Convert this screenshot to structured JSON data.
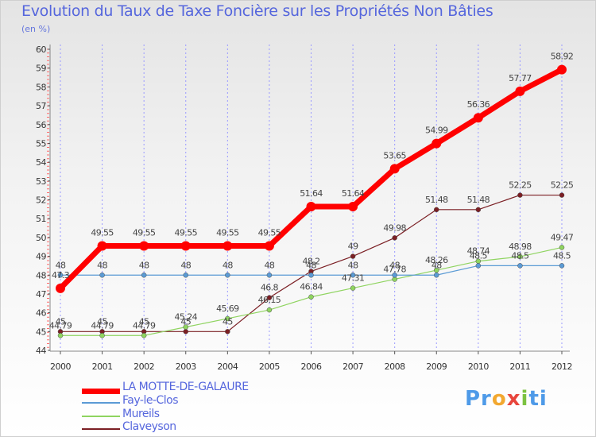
{
  "title": "Evolution du Taux de Taxe Foncière sur les Propriétés Non Bâties",
  "unit_label": "(en %)",
  "logo": {
    "p": "Pr",
    "o": "o",
    "x": "x",
    "i": "i",
    "t": "ti",
    "full": "Proxiti"
  },
  "chart_data": {
    "type": "line",
    "title": "Evolution du Taux de Taxe Foncière sur les Propriétés Non Bâties",
    "ylabel": "(en %)",
    "xlabel": "",
    "ylim": [
      44,
      60
    ],
    "yticks": [
      "44",
      "45",
      "46",
      "47",
      "48",
      "49",
      "50",
      "51",
      "52",
      "53",
      "54",
      "55",
      "56",
      "57",
      "58",
      "59",
      "60"
    ],
    "x": [
      "2000",
      "2001",
      "2002",
      "2003",
      "2004",
      "2005",
      "2006",
      "2007",
      "2008",
      "2009",
      "2010",
      "2011",
      "2012"
    ],
    "grid": "vertical",
    "series": [
      {
        "name": "LA MOTTE-DE-GALAURE",
        "color": "#ff0000",
        "values": [
          47.3,
          49.55,
          49.55,
          49.55,
          49.55,
          49.55,
          51.64,
          51.64,
          53.65,
          54.99,
          56.36,
          57.77,
          58.92
        ],
        "labels": [
          "47.3",
          "49.55",
          "49.55",
          "49.55",
          "49.55",
          "49.55",
          "51.64",
          "51.64",
          "53.65",
          "54.99",
          "56.36",
          "57.77",
          "58.92"
        ]
      },
      {
        "name": "Fay-le-Clos",
        "color": "#5b9bd5",
        "values": [
          48,
          48,
          48,
          48,
          48,
          48,
          48,
          48,
          48,
          48,
          48.5,
          48.5,
          48.5
        ],
        "labels": [
          "48",
          "48",
          "48",
          "48",
          "48",
          "48",
          "48",
          "48",
          "48",
          "48",
          "48.5",
          "48.5",
          "48.5"
        ]
      },
      {
        "name": "Mureils",
        "color": "#8fd460",
        "values": [
          44.79,
          44.79,
          44.79,
          45.24,
          45.69,
          46.15,
          46.84,
          47.31,
          47.78,
          48.26,
          48.74,
          48.98,
          49.47
        ],
        "labels": [
          "44.79",
          "44.79",
          "44.79",
          "45.24",
          "45.69",
          "46.15",
          "46.84",
          "47.31",
          "47.78",
          "48.26",
          "48.74",
          "48.98",
          "49.47"
        ]
      },
      {
        "name": "Claveyson",
        "color": "#7b1f24",
        "values": [
          45,
          45,
          45,
          45,
          45,
          46.8,
          48.2,
          49,
          49.98,
          51.48,
          51.48,
          52.25,
          52.25
        ],
        "labels": [
          "45",
          "45",
          "45",
          "45",
          "45",
          "46.8",
          "48.2",
          "49",
          "49.98",
          "51.48",
          "51.48",
          "52.25",
          "52.25"
        ]
      }
    ]
  },
  "legend": [
    {
      "label": "LA MOTTE-DE-GALAURE",
      "color": "#ff0000"
    },
    {
      "label": "Fay-le-Clos",
      "color": "#5b9bd5"
    },
    {
      "label": "Mureils",
      "color": "#8fd460"
    },
    {
      "label": "Claveyson",
      "color": "#7b1f24"
    }
  ]
}
